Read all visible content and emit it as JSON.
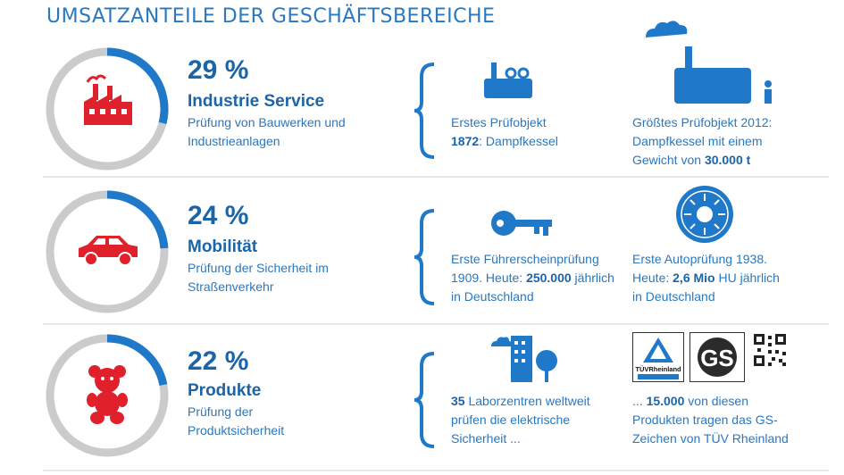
{
  "title": "UMSATZANTEILE DER GESCHÄFTSBEREICHE",
  "colors": {
    "blue": "#1f78c8",
    "grey": "#c9cbcd",
    "red": "#e0202a",
    "text": "#2a78bf"
  },
  "chart_data": {
    "type": "pie",
    "title": "UMSATZANTEILE DER GESCHÄFTSBEREICHE",
    "categories": [
      "Industrie Service",
      "Mobilität",
      "Produkte"
    ],
    "values": [
      29,
      24,
      22
    ],
    "unit": "%"
  },
  "segments": [
    {
      "percent_label": "29 %",
      "name": "Industrie Service",
      "desc_line1": "Prüfung von Bauwerken und",
      "desc_line2": "Industrieanlagen",
      "icon": "factory-icon",
      "fact1": {
        "line1": "Erstes Prüfobjekt",
        "line2_bold": "1872",
        "line2_rest": ": Dampfkessel",
        "icon": "boiler-icon"
      },
      "fact2": {
        "line1": "Größtes Prüfobjekt 2012:",
        "line2": "Dampfkessel mit einem",
        "line3_pre": "Gewicht von ",
        "line3_bold": "30.000 t",
        "icon": "large-boiler-icon"
      }
    },
    {
      "percent_label": "24 %",
      "name": "Mobilität",
      "desc_line1": "Prüfung der Sicherheit im",
      "desc_line2": "Straßenverkehr",
      "icon": "car-icon",
      "fact1": {
        "line1": "Erste Führerscheinprüfung",
        "line2_pre": "1909. Heute: ",
        "line2_bold": "250.000",
        "line2_post": " jährlich",
        "line3": "in Deutschland",
        "icon": "key-icon"
      },
      "fact2": {
        "line1": "Erste Autoprüfung 1938.",
        "line2_pre": "Heute: ",
        "line2_bold": "2,6 Mio",
        "line2_post": " HU jährlich",
        "line3": "in Deutschland",
        "icon": "inspection-sticker-icon"
      }
    },
    {
      "percent_label": "22 %",
      "name": "Produkte",
      "desc_line1": "Prüfung der",
      "desc_line2": "Produktsicherheit",
      "icon": "teddy-bear-icon",
      "fact1": {
        "line1_bold": "35",
        "line1_rest": " Laborzentren weltweit",
        "line2": "prüfen die elektrische",
        "line3": "Sicherheit ...",
        "icon": "lab-building-icon"
      },
      "fact2": {
        "line1_pre": "... ",
        "line1_bold": "15.000",
        "line1_post": " von diesen",
        "line2": "Produkten tragen das GS-",
        "line3": "Zeichen von TÜV Rheinland",
        "icon": "certification-logos-icon"
      }
    }
  ],
  "logos": {
    "tuv_label": "TÜVRheinland",
    "gs_label": "GS"
  }
}
